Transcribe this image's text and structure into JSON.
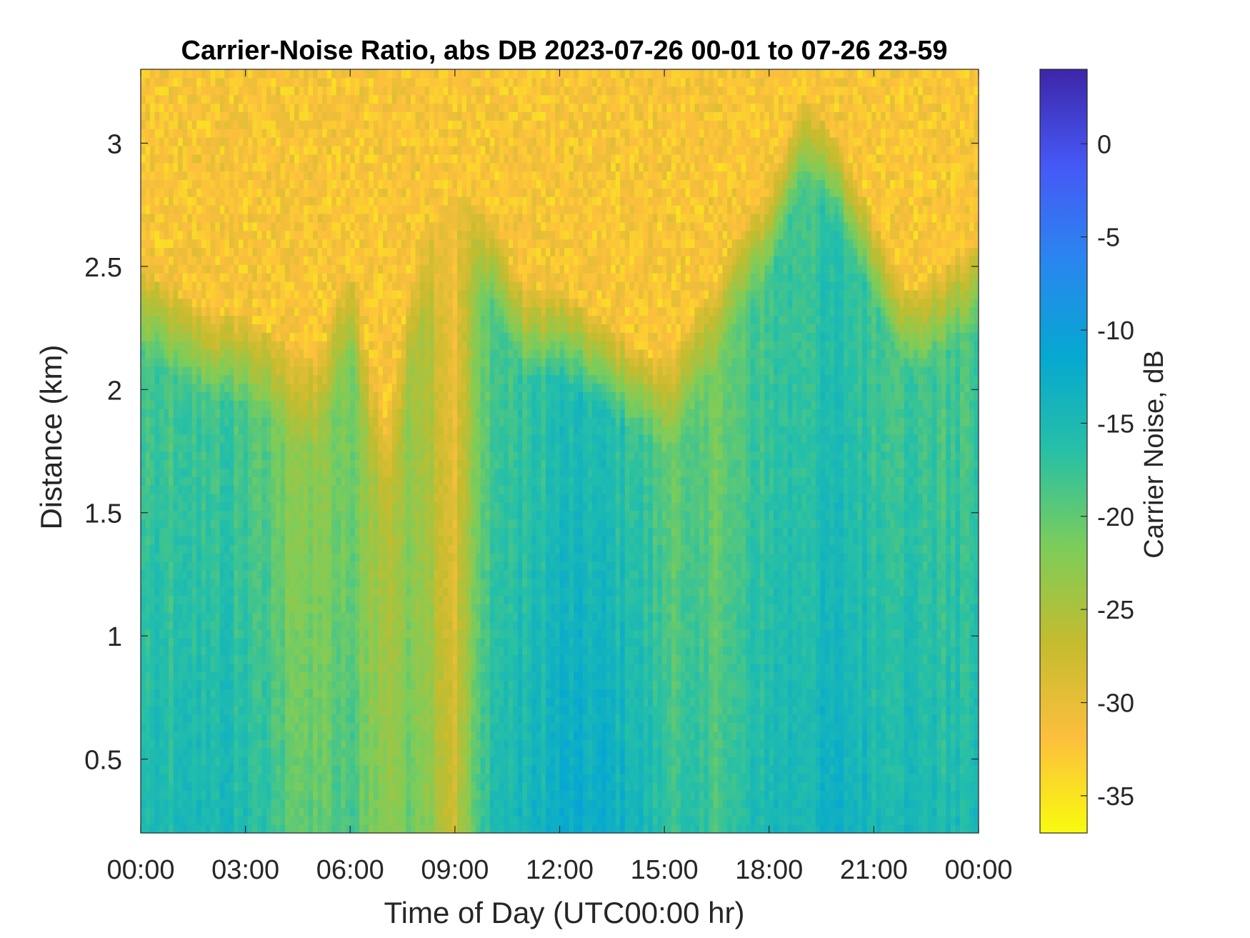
{
  "chart_data": {
    "type": "heatmap",
    "title": "Carrier-Noise Ratio, abs DB 2023-07-26 00-01 to 07-26 23-59",
    "xlabel": "Time of Day (UTC00:00 hr)",
    "ylabel": "Distance (km)",
    "colorbar_label": "Carrier Noise, dB",
    "x_ticks": [
      "00:00",
      "03:00",
      "06:00",
      "09:00",
      "12:00",
      "15:00",
      "18:00",
      "21:00",
      "00:00"
    ],
    "x_range_hours": [
      0,
      24
    ],
    "y_ticks": [
      "0.5",
      "1",
      "1.5",
      "2",
      "2.5",
      "3"
    ],
    "y_tick_values": [
      0.5,
      1,
      1.5,
      2,
      2.5,
      3
    ],
    "y_range_km": [
      0.2,
      3.3
    ],
    "colorbar_ticks": [
      "0",
      "-5",
      "-10",
      "-15",
      "-20",
      "-25",
      "-30",
      "-35"
    ],
    "colorbar_tick_values": [
      0,
      -5,
      -10,
      -15,
      -20,
      -25,
      -30,
      -35
    ],
    "colorbar_range_db": [
      -37,
      4
    ],
    "colormap": "parula (reversed: yellow = low, dark blue = high)",
    "colormap_stops": [
      "#f9fb0e",
      "#fcbf3d",
      "#c4bc2e",
      "#7ccd5a",
      "#27c0a6",
      "#05a8d1",
      "#2a86ef",
      "#4658f6",
      "#3d26a8"
    ],
    "grid": false,
    "estimated_profile": {
      "hours": [
        0,
        1,
        2,
        3,
        4,
        5,
        6,
        7,
        8,
        9,
        10,
        11,
        12,
        13,
        14,
        15,
        16,
        17,
        18,
        19,
        20,
        21,
        22,
        23,
        24
      ],
      "boundary_height_km": [
        2.3,
        2.2,
        2.1,
        2.1,
        2.0,
        1.9,
        2.3,
        1.6,
        2.4,
        2.6,
        2.5,
        2.2,
        2.2,
        2.1,
        2.0,
        1.9,
        2.1,
        2.4,
        2.6,
        3.0,
        2.8,
        2.5,
        2.2,
        2.3,
        2.4
      ],
      "near_range_cnr_db": [
        -15,
        -15,
        -14,
        -15,
        -18,
        -20,
        -18,
        -22,
        -20,
        -27,
        -15,
        -14,
        -12,
        -12,
        -13,
        -16,
        -17,
        -17,
        -14,
        -14,
        -13,
        -14,
        -14,
        -15,
        -15
      ]
    }
  }
}
